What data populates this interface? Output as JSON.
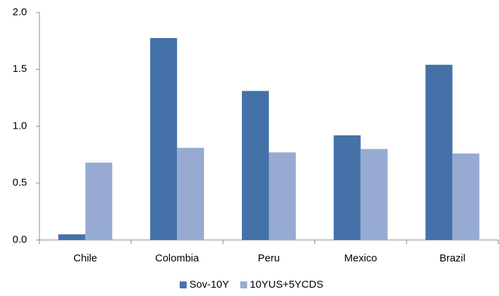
{
  "chart_data": {
    "type": "bar",
    "categories": [
      "Chile",
      "Colombia",
      "Peru",
      "Mexico",
      "Brazil"
    ],
    "series": [
      {
        "name": "Sov-10Y",
        "color": "#4472a8",
        "values": [
          0.05,
          1.775,
          1.31,
          0.92,
          1.54
        ]
      },
      {
        "name": "10YUS+5YCDS",
        "color": "#97abd2",
        "values": [
          0.68,
          0.81,
          0.77,
          0.8,
          0.76
        ]
      }
    ],
    "ylim": [
      0,
      2
    ],
    "yticks": [
      {
        "value": 0,
        "label": "0.0"
      },
      {
        "value": 0.5,
        "label": "0.5"
      },
      {
        "value": 1,
        "label": "1.0"
      },
      {
        "value": 1.5,
        "label": "1.5"
      },
      {
        "value": 2,
        "label": "2.0"
      }
    ],
    "grid": false,
    "legend": "bottom"
  }
}
